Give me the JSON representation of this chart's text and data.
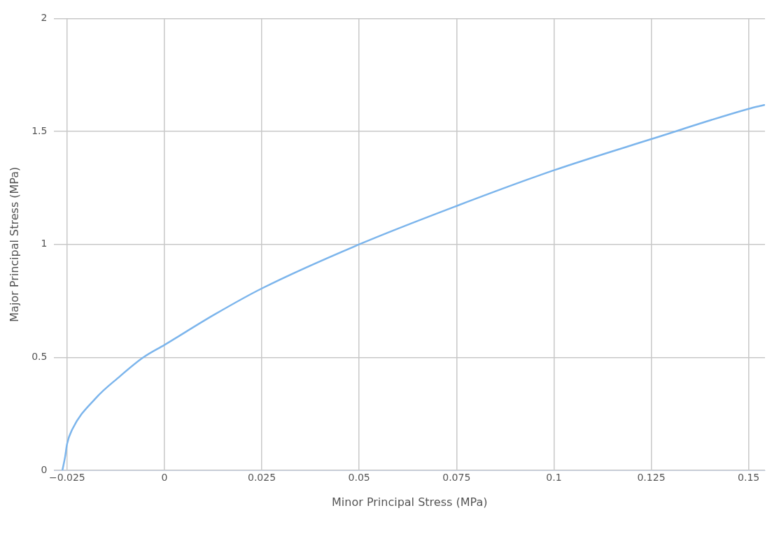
{
  "chart_data": {
    "type": "line",
    "xlabel": "Minor Principal Stress (MPa)",
    "ylabel": "Major Principal Stress (MPa)",
    "x": [
      -0.0262,
      -0.0255,
      -0.025,
      -0.0237,
      -0.0176,
      -0.0115,
      -0.0054,
      0,
      0.0129,
      0.025,
      0.05,
      0.075,
      0.1,
      0.125,
      0.15,
      0.154
    ],
    "series": [
      {
        "color": "#7cb5ec",
        "values": [
          0,
          0.06,
          0.117,
          0.18,
          0.32,
          0.415,
          0.5,
          0.555,
          0.69,
          0.805,
          1.0,
          1.17,
          1.328,
          1.466,
          1.6,
          1.617
        ]
      }
    ],
    "xlim": [
      -0.0283,
      0.1542
    ],
    "xticks": [
      {
        "value": -0.025,
        "label": "−0.025"
      },
      0,
      0.025,
      0.05,
      0.075,
      0.1,
      0.125,
      0.15
    ],
    "ylim": [
      0,
      2
    ],
    "yticks": [
      0,
      0.5,
      1,
      1.5,
      2
    ],
    "grid": true,
    "marker": "none",
    "line_style": "solid"
  }
}
